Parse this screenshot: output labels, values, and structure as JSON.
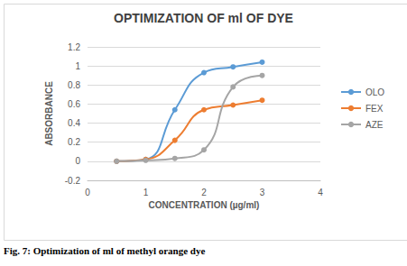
{
  "chart_data": {
    "type": "line",
    "title": "OPTIMIZATION OF ml OF DYE",
    "caption": "Fig. 7: Optimization of ml of methyl orange dye",
    "x_label": "CONCENTRATION (µg/ml)",
    "y_label": "ABSORBANCE",
    "x": [
      0.5,
      1,
      1.5,
      2,
      2.5,
      3
    ],
    "series": [
      {
        "name": "OLO",
        "color": "#5b9bd5",
        "values": [
          0,
          0.02,
          0.54,
          0.93,
          0.99,
          1.04
        ]
      },
      {
        "name": "FEX",
        "color": "#ed7d31",
        "values": [
          0,
          0.02,
          0.22,
          0.54,
          0.59,
          0.64
        ]
      },
      {
        "name": "AZE",
        "color": "#a5a5a5",
        "values": [
          0,
          0.01,
          0.03,
          0.12,
          0.78,
          0.9
        ]
      }
    ],
    "xlim": [
      0,
      4
    ],
    "xticks": [
      0,
      1,
      2,
      3,
      4
    ],
    "ylim": [
      -0.2,
      1.2
    ],
    "yticks": [
      -0.2,
      0,
      0.2,
      0.4,
      0.6,
      0.8,
      1,
      1.2
    ],
    "grid": true,
    "legend": "right",
    "marker": "circle",
    "line_style": "smooth"
  }
}
